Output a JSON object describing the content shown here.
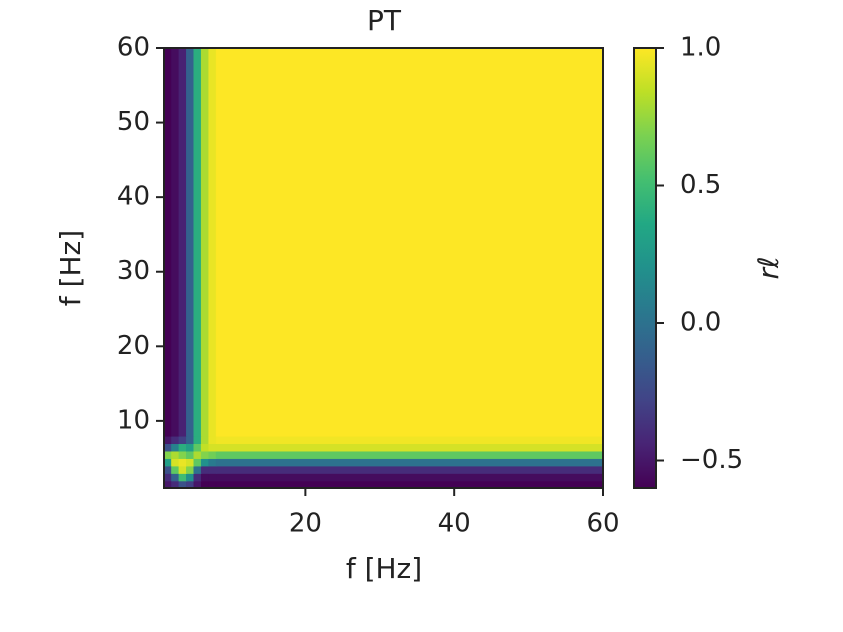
{
  "chart_data": {
    "type": "heatmap",
    "title": "PT",
    "x_label": "f [Hz]",
    "y_label": "f [Hz]",
    "x_edges": [
      1,
      2,
      3,
      4,
      5,
      6,
      7,
      8,
      60
    ],
    "y_edges": [
      1,
      2,
      3,
      4,
      5,
      6,
      7,
      8,
      60
    ],
    "z": [
      [
        -0.5,
        -0.4,
        -0.2,
        -0.3,
        -0.5,
        -0.6,
        -0.6,
        -0.6
      ],
      [
        -0.4,
        -0.1,
        0.5,
        0.2,
        -0.4,
        -0.55,
        -0.55,
        -0.55
      ],
      [
        -0.2,
        0.6,
        0.9,
        0.7,
        0.0,
        -0.4,
        -0.4,
        -0.4
      ],
      [
        0.3,
        0.9,
        0.95,
        0.9,
        0.6,
        0.2,
        0.05,
        0.0
      ],
      [
        0.7,
        0.8,
        0.7,
        0.6,
        0.8,
        0.7,
        0.65,
        0.6
      ],
      [
        -0.2,
        0.1,
        0.4,
        0.3,
        0.6,
        0.85,
        0.9,
        0.9
      ],
      [
        -0.5,
        -0.4,
        -0.3,
        -0.1,
        0.4,
        0.8,
        0.95,
        0.97
      ],
      [
        -0.6,
        -0.55,
        -0.45,
        -0.1,
        0.4,
        0.8,
        0.95,
        1.0
      ]
    ],
    "xlim": [
      1,
      60
    ],
    "ylim": [
      1,
      60
    ],
    "xticks": [
      20,
      40,
      60
    ],
    "yticks": [
      10,
      20,
      30,
      40,
      50,
      60
    ],
    "colormap": "viridis",
    "clim": [
      -0.6,
      1.0
    ],
    "cticks": [
      {
        "value": -0.5,
        "label": "−0.5"
      },
      {
        "value": 0,
        "label": "0.0"
      },
      0.5,
      {
        "value": 1,
        "label": "1.0"
      }
    ],
    "colorbar_label": "rℓ"
  }
}
